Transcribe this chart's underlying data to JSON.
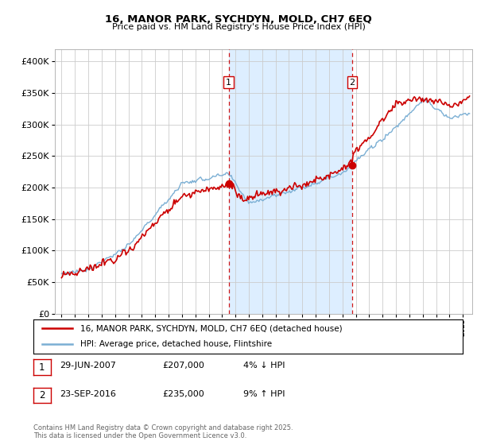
{
  "title": "16, MANOR PARK, SYCHDYN, MOLD, CH7 6EQ",
  "subtitle": "Price paid vs. HM Land Registry's House Price Index (HPI)",
  "legend_line1": "16, MANOR PARK, SYCHDYN, MOLD, CH7 6EQ (detached house)",
  "legend_line2": "HPI: Average price, detached house, Flintshire",
  "sale1_label": "1",
  "sale1_date": "29-JUN-2007",
  "sale1_price": "£207,000",
  "sale1_info": "4% ↓ HPI",
  "sale2_label": "2",
  "sale2_date": "23-SEP-2016",
  "sale2_price": "£235,000",
  "sale2_info": "9% ↑ HPI",
  "sale1_x": 2007.5,
  "sale1_y": 207000,
  "sale2_x": 2016.73,
  "sale2_y": 235000,
  "vline1_x": 2007.5,
  "vline2_x": 2016.73,
  "hpi_color": "#7bafd4",
  "price_color": "#cc0000",
  "vline_color": "#cc0000",
  "shade_color": "#ddeeff",
  "background_color": "#f0f4f8",
  "ylim": [
    0,
    420000
  ],
  "xlim_start": 1994.5,
  "xlim_end": 2025.7,
  "copyright": "Contains HM Land Registry data © Crown copyright and database right 2025.\nThis data is licensed under the Open Government Licence v3.0.",
  "xticks": [
    1995,
    1996,
    1997,
    1998,
    1999,
    2000,
    2001,
    2002,
    2003,
    2004,
    2005,
    2006,
    2007,
    2008,
    2009,
    2010,
    2011,
    2012,
    2013,
    2014,
    2015,
    2016,
    2017,
    2018,
    2019,
    2020,
    2021,
    2022,
    2023,
    2024,
    2025
  ],
  "yticks": [
    0,
    50000,
    100000,
    150000,
    200000,
    250000,
    300000,
    350000,
    400000
  ]
}
